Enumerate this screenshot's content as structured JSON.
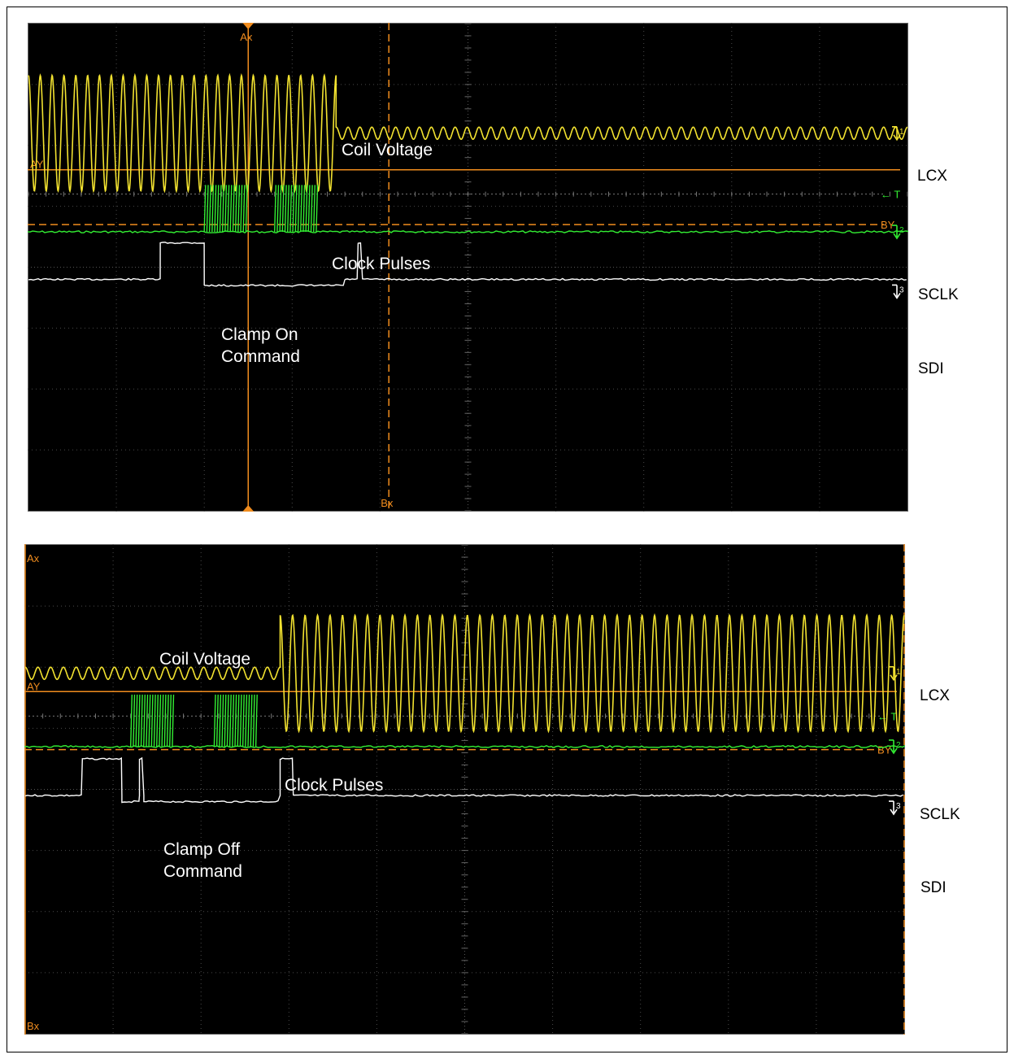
{
  "colors": {
    "coil": "#f2e230",
    "clock": "#33ee33",
    "sdi": "#ffffff",
    "cursor": "#f08c1e",
    "grid": "#4a4a4a",
    "screen": "#000000"
  },
  "channels": {
    "ch1": {
      "label": "LCX",
      "marker": "1"
    },
    "ch2": {
      "label": "SCLK",
      "marker": "2"
    },
    "ch3": {
      "label": "SDI",
      "marker": "3"
    }
  },
  "cursors": {
    "ax": "Ax",
    "bx": "Bx",
    "ay": "AY",
    "by": "BY",
    "trigger": "← T"
  },
  "chart_data": [
    {
      "type": "line",
      "grid": {
        "x_divisions": 10,
        "y_divisions": 8
      },
      "annotations": {
        "coil": "Coil Voltage",
        "clock": "Clock Pulses",
        "command_line1": "Clamp On",
        "command_line2": "Command"
      },
      "series": [
        {
          "name": "LCX",
          "channel": "ch1",
          "level_div": 1.8,
          "segments": [
            {
              "from": 0.0,
              "to": 3.5,
              "shape": "sine",
              "amplitude_div": 0.95,
              "cycles": 26
            },
            {
              "from": 3.5,
              "to": 10.0,
              "shape": "sine",
              "amplitude_div": 0.1,
              "cycles": 48
            }
          ]
        },
        {
          "name": "SCLK",
          "channel": "ch2",
          "level_div": 3.42,
          "bursts": [
            {
              "from": 2.0,
              "to": 2.5,
              "high_div": 2.65
            },
            {
              "from": 2.8,
              "to": 3.3,
              "high_div": 2.65
            }
          ]
        },
        {
          "name": "SDI",
          "channel": "ch3",
          "low_div": 4.2,
          "high_div": 3.6,
          "drop_div": 4.3,
          "pulses": [
            {
              "from": 1.5,
              "to": 2.0
            },
            {
              "from": 3.75,
              "to": 3.8
            }
          ],
          "dropped": [
            {
              "from": 2.0,
              "to": 3.6
            }
          ]
        }
      ],
      "cursor_positions": {
        "ax_div": 2.5,
        "bx_div": 4.1,
        "ay_div": 2.4,
        "by_div": 3.3,
        "trigger_div": 2.8
      }
    },
    {
      "type": "line",
      "grid": {
        "x_divisions": 10,
        "y_divisions": 8
      },
      "annotations": {
        "coil": "Coil Voltage",
        "clock": "Clock Pulses",
        "command_line1": "Clamp Off",
        "command_line2": "Command"
      },
      "series": [
        {
          "name": "LCX",
          "channel": "ch1",
          "level_div": 2.1,
          "segments": [
            {
              "from": 0.0,
              "to": 2.9,
              "shape": "sine",
              "amplitude_div": 0.1,
              "cycles": 20
            },
            {
              "from": 2.9,
              "to": 10.0,
              "shape": "sine",
              "amplitude_div": 0.95,
              "cycles": 50
            }
          ]
        },
        {
          "name": "SCLK",
          "channel": "ch2",
          "level_div": 3.3,
          "bursts": [
            {
              "from": 1.2,
              "to": 1.7
            },
            {
              "from": 2.15,
              "to": 2.65
            }
          ]
        },
        {
          "name": "SDI",
          "channel": "ch3",
          "low_div": 4.1,
          "high_div": 3.5,
          "drop_div": 4.2,
          "pulses": [
            {
              "from": 0.65,
              "to": 1.1
            },
            {
              "from": 1.3,
              "to": 1.35
            },
            {
              "from": 2.9,
              "to": 3.05
            }
          ],
          "dropped": [
            {
              "from": 1.1,
              "to": 1.3
            },
            {
              "from": 1.35,
              "to": 2.9
            }
          ]
        }
      ],
      "cursor_positions": {
        "ax_div": 0.0,
        "bx_div": 10.0,
        "ay_div": 2.4,
        "by_div": 3.35,
        "trigger_div": 2.8
      }
    }
  ]
}
